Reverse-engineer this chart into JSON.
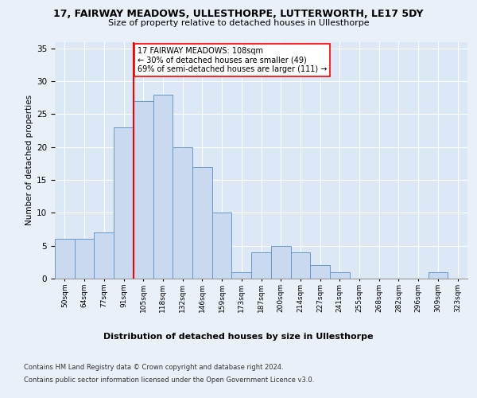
{
  "title_line1": "17, FAIRWAY MEADOWS, ULLESTHORPE, LUTTERWORTH, LE17 5DY",
  "title_line2": "Size of property relative to detached houses in Ullesthorpe",
  "xlabel": "Distribution of detached houses by size in Ullesthorpe",
  "ylabel": "Number of detached properties",
  "bin_labels": [
    "50sqm",
    "64sqm",
    "77sqm",
    "91sqm",
    "105sqm",
    "118sqm",
    "132sqm",
    "146sqm",
    "159sqm",
    "173sqm",
    "187sqm",
    "200sqm",
    "214sqm",
    "227sqm",
    "241sqm",
    "255sqm",
    "268sqm",
    "282sqm",
    "296sqm",
    "309sqm",
    "323sqm"
  ],
  "bar_heights": [
    6,
    6,
    7,
    23,
    27,
    28,
    20,
    17,
    10,
    1,
    4,
    5,
    4,
    2,
    1,
    0,
    0,
    0,
    0,
    1,
    0
  ],
  "bar_color": "#c9d9f0",
  "bar_edge_color": "#6699cc",
  "annotation_text": "17 FAIRWAY MEADOWS: 108sqm\n← 30% of detached houses are smaller (49)\n69% of semi-detached houses are larger (111) →",
  "vline_x": 4.0,
  "vline_color": "red",
  "annotation_box_facecolor": "white",
  "annotation_box_edgecolor": "red",
  "ylim": [
    0,
    36
  ],
  "yticks": [
    0,
    5,
    10,
    15,
    20,
    25,
    30,
    35
  ],
  "footer_line1": "Contains HM Land Registry data © Crown copyright and database right 2024.",
  "footer_line2": "Contains public sector information licensed under the Open Government Licence v3.0.",
  "fig_facecolor": "#eaf0f8",
  "ax_facecolor": "#dce8f5",
  "grid_color": "white"
}
